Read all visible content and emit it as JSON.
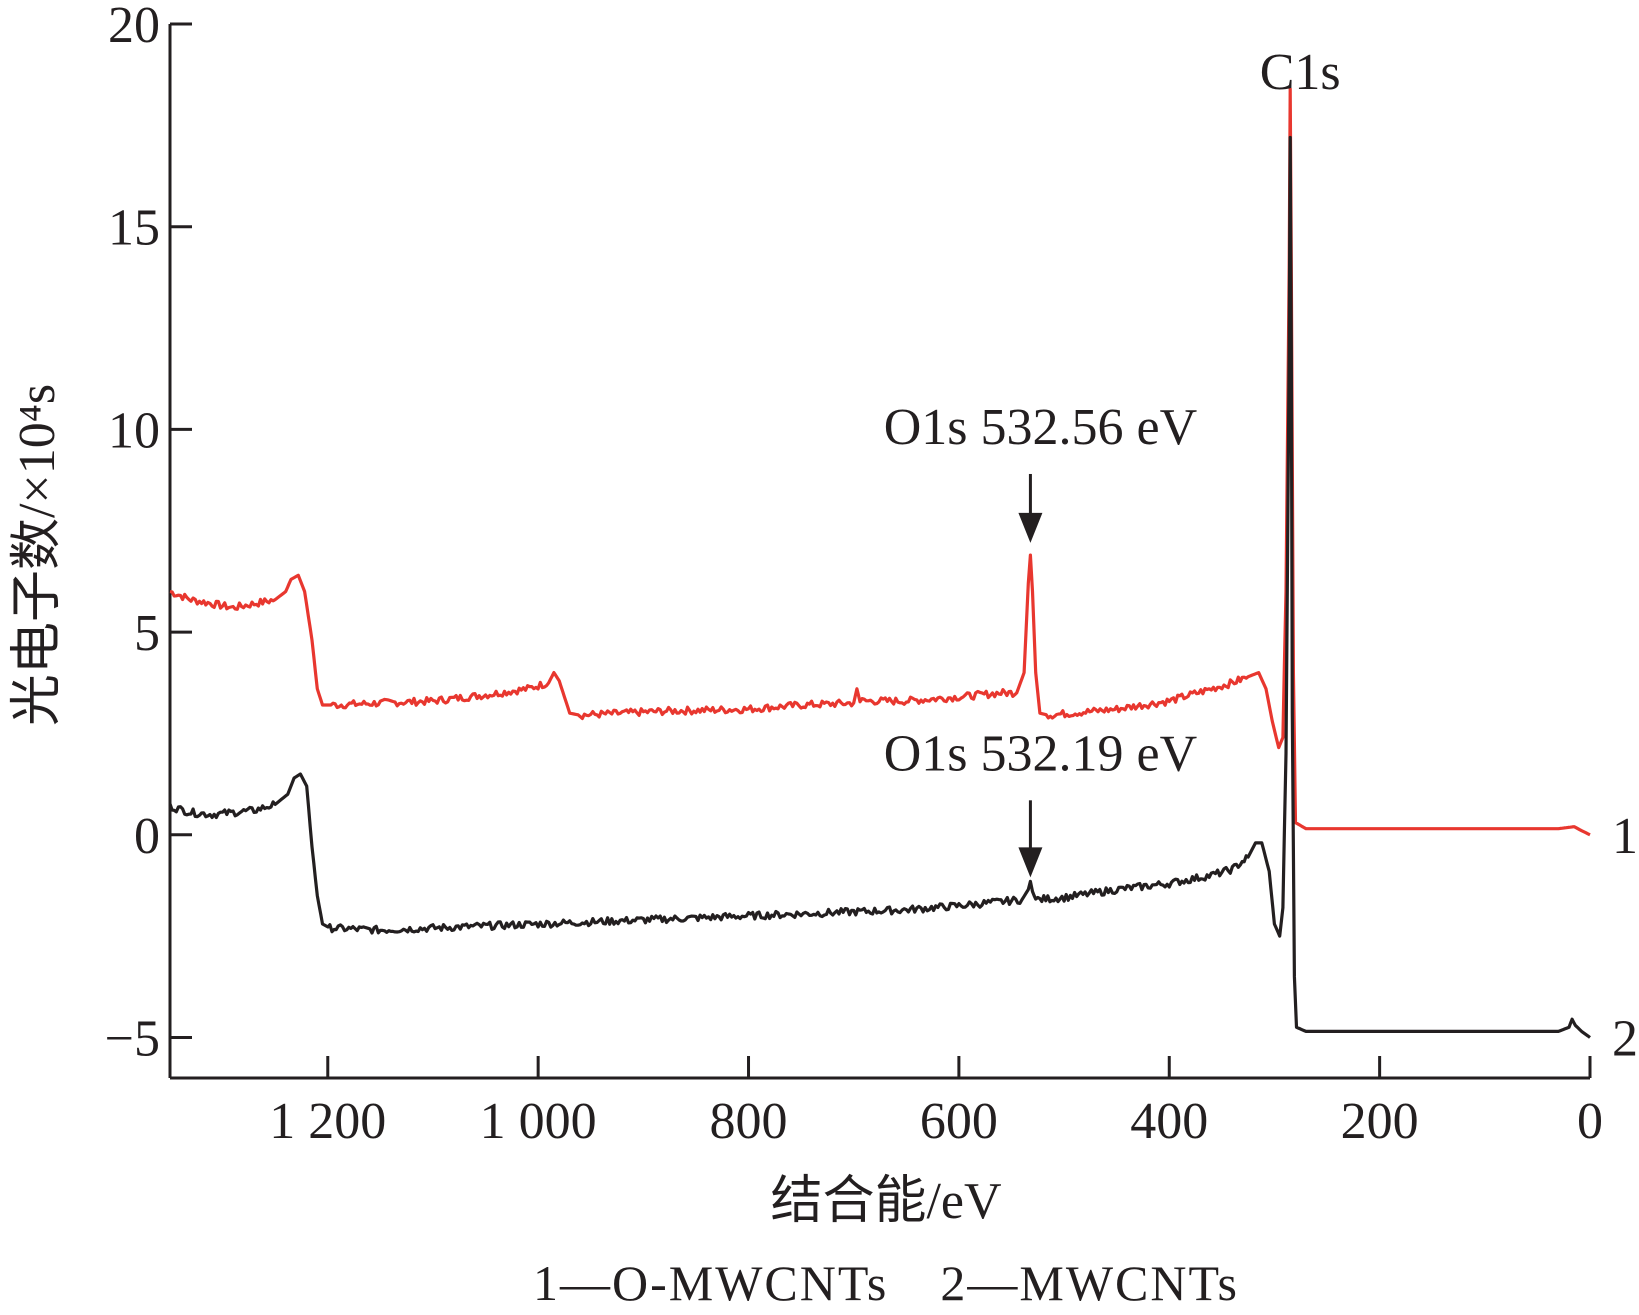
{
  "chart_data": {
    "type": "line",
    "xlabel": "结合能/eV",
    "ylabel": "光电子数/×10⁴s",
    "xlim": [
      1350,
      0
    ],
    "ylim": [
      -6,
      20
    ],
    "x_ticks": [
      1200,
      1000,
      800,
      600,
      400,
      200,
      0
    ],
    "x_tick_labels": [
      "1 200",
      "1 000",
      "800",
      "600",
      "400",
      "200",
      "0"
    ],
    "y_ticks": [
      20,
      15,
      10,
      5,
      0,
      -5
    ],
    "y_tick_labels": [
      "20",
      "15",
      "10",
      "5",
      "0",
      "−5"
    ],
    "grid": false,
    "series": [
      {
        "name": "1",
        "color": "#e8372f",
        "points": [
          [
            1350,
            6.0
          ],
          [
            1330,
            5.8
          ],
          [
            1310,
            5.7
          ],
          [
            1290,
            5.6
          ],
          [
            1270,
            5.7
          ],
          [
            1250,
            5.8
          ],
          [
            1240,
            6.0
          ],
          [
            1235,
            6.3
          ],
          [
            1228,
            6.4
          ],
          [
            1222,
            6.0
          ],
          [
            1215,
            4.8
          ],
          [
            1210,
            3.6
          ],
          [
            1205,
            3.2
          ],
          [
            1195,
            3.2
          ],
          [
            1150,
            3.25
          ],
          [
            1100,
            3.3
          ],
          [
            1050,
            3.45
          ],
          [
            1010,
            3.6
          ],
          [
            990,
            3.75
          ],
          [
            985,
            4.0
          ],
          [
            980,
            3.8
          ],
          [
            975,
            3.4
          ],
          [
            970,
            3.0
          ],
          [
            960,
            2.95
          ],
          [
            920,
            3.0
          ],
          [
            880,
            3.05
          ],
          [
            800,
            3.1
          ],
          [
            750,
            3.2
          ],
          [
            700,
            3.25
          ],
          [
            697,
            3.6
          ],
          [
            694,
            3.3
          ],
          [
            650,
            3.3
          ],
          [
            600,
            3.4
          ],
          [
            560,
            3.5
          ],
          [
            545,
            3.5
          ],
          [
            538,
            4.0
          ],
          [
            534,
            6.2
          ],
          [
            532,
            6.9
          ],
          [
            530,
            6.0
          ],
          [
            527,
            4.0
          ],
          [
            523,
            3.0
          ],
          [
            515,
            2.95
          ],
          [
            450,
            3.1
          ],
          [
            400,
            3.3
          ],
          [
            360,
            3.6
          ],
          [
            340,
            3.75
          ],
          [
            325,
            3.9
          ],
          [
            315,
            4.0
          ],
          [
            308,
            3.6
          ],
          [
            302,
            2.8
          ],
          [
            296,
            2.15
          ],
          [
            292,
            2.4
          ],
          [
            289,
            6.0
          ],
          [
            286,
            14.0
          ],
          [
            285,
            18.4
          ],
          [
            284,
            14.0
          ],
          [
            282,
            4.0
          ],
          [
            280,
            0.3
          ],
          [
            270,
            0.15
          ],
          [
            200,
            0.15
          ],
          [
            100,
            0.15
          ],
          [
            30,
            0.15
          ],
          [
            15,
            0.2
          ],
          [
            8,
            0.1
          ],
          [
            0,
            0.0
          ]
        ]
      },
      {
        "name": "2",
        "color": "#231f20",
        "points": [
          [
            1350,
            0.7
          ],
          [
            1330,
            0.55
          ],
          [
            1310,
            0.5
          ],
          [
            1290,
            0.55
          ],
          [
            1270,
            0.6
          ],
          [
            1250,
            0.75
          ],
          [
            1238,
            1.0
          ],
          [
            1232,
            1.4
          ],
          [
            1226,
            1.5
          ],
          [
            1220,
            1.2
          ],
          [
            1215,
            -0.3
          ],
          [
            1210,
            -1.5
          ],
          [
            1205,
            -2.2
          ],
          [
            1198,
            -2.3
          ],
          [
            1150,
            -2.35
          ],
          [
            1100,
            -2.3
          ],
          [
            1050,
            -2.25
          ],
          [
            1000,
            -2.2
          ],
          [
            950,
            -2.15
          ],
          [
            900,
            -2.1
          ],
          [
            850,
            -2.05
          ],
          [
            800,
            -2.0
          ],
          [
            750,
            -1.95
          ],
          [
            700,
            -1.9
          ],
          [
            650,
            -1.85
          ],
          [
            600,
            -1.75
          ],
          [
            560,
            -1.65
          ],
          [
            540,
            -1.6
          ],
          [
            534,
            -1.35
          ],
          [
            532,
            -1.15
          ],
          [
            530,
            -1.4
          ],
          [
            527,
            -1.6
          ],
          [
            500,
            -1.55
          ],
          [
            450,
            -1.35
          ],
          [
            400,
            -1.2
          ],
          [
            360,
            -1.0
          ],
          [
            340,
            -0.85
          ],
          [
            325,
            -0.55
          ],
          [
            318,
            -0.2
          ],
          [
            312,
            -0.2
          ],
          [
            305,
            -0.9
          ],
          [
            300,
            -2.2
          ],
          [
            295,
            -2.5
          ],
          [
            292,
            -1.8
          ],
          [
            289,
            2.0
          ],
          [
            286,
            12.0
          ],
          [
            285,
            17.2
          ],
          [
            284,
            12.0
          ],
          [
            283,
            3.0
          ],
          [
            281,
            -3.5
          ],
          [
            279,
            -4.75
          ],
          [
            270,
            -4.85
          ],
          [
            200,
            -4.85
          ],
          [
            100,
            -4.85
          ],
          [
            30,
            -4.85
          ],
          [
            20,
            -4.75
          ],
          [
            17,
            -4.55
          ],
          [
            14,
            -4.7
          ],
          [
            8,
            -4.85
          ],
          [
            0,
            -5.0
          ]
        ]
      }
    ],
    "annotations": [
      {
        "text": "C1s",
        "x": 285,
        "y": 18.6
      },
      {
        "text": "O1s 532.56 eV",
        "x": 532,
        "arrow_from_y": 8.9,
        "arrow_to_y": 7.2
      },
      {
        "text": "O1s 532.19 eV",
        "x": 532,
        "arrow_from_y": 0.85,
        "arrow_to_y": -1.05
      }
    ]
  },
  "caption": "1—O-MWCNTs　2—MWCNTs"
}
